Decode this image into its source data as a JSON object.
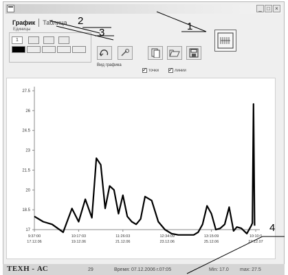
{
  "window": {
    "title": "",
    "buttons": [
      "_",
      "□",
      "×"
    ]
  },
  "tabs": [
    {
      "label": "График",
      "active": true
    },
    {
      "label": "Таблица",
      "active": false
    }
  ],
  "toolbar": {
    "group_label": "Единицы",
    "unit_value": "1",
    "plot_type_label": "Вид графика",
    "checkbox_points": "точки",
    "checkbox_lines": "линии",
    "icons": [
      "undo-icon",
      "zoom-icon",
      "copy-icon",
      "open-icon",
      "save-icon",
      "print-icon"
    ]
  },
  "callouts": [
    "1",
    "2",
    "3",
    "4"
  ],
  "chart_data": {
    "type": "line",
    "yticks": [
      "27.5",
      "26",
      "24.5",
      "23",
      "21.5",
      "20",
      "18.5",
      "17"
    ],
    "xticks": [
      {
        "time": "9:37:00",
        "date": "17.12.06"
      },
      {
        "time": "10:17:03",
        "date": "19.12.06"
      },
      {
        "time": "11:26:03",
        "date": "21.12.06"
      },
      {
        "time": "12:34:09",
        "date": "23.12.06"
      },
      {
        "time": "13:15:09",
        "date": "25.12.06"
      },
      {
        "time": "10:10:0",
        "date": "27.12.07"
      }
    ],
    "ylim": [
      17,
      27.5
    ],
    "xlim": [
      0,
      10
    ],
    "x": [
      0,
      0.4,
      0.8,
      1.3,
      1.7,
      2.0,
      2.3,
      2.6,
      2.8,
      3.0,
      3.2,
      3.4,
      3.6,
      3.8,
      4.0,
      4.2,
      4.4,
      4.6,
      4.8,
      5.0,
      5.3,
      5.6,
      5.9,
      6.2,
      6.5,
      6.9,
      7.2,
      7.4,
      7.6,
      7.8,
      8.0,
      8.2,
      8.4,
      8.6,
      8.8,
      9.0,
      9.15,
      9.35,
      9.6,
      9.8,
      9.85,
      9.9,
      9.95
    ],
    "y": [
      18.0,
      17.6,
      17.4,
      16.8,
      18.6,
      17.6,
      19.3,
      17.9,
      22.4,
      21.9,
      18.6,
      20.3,
      20.0,
      18.2,
      19.6,
      18.0,
      17.6,
      17.4,
      17.8,
      19.5,
      19.2,
      17.6,
      17.0,
      16.7,
      16.6,
      16.6,
      16.6,
      16.8,
      17.4,
      18.8,
      18.2,
      17.0,
      17.1,
      17.4,
      18.7,
      16.9,
      17.2,
      17.1,
      16.7,
      17.3,
      17.5,
      26.5,
      17.3
    ]
  },
  "status": {
    "brand": "ТЕХН - АС",
    "count": "29",
    "record": "Время: 07.12.2006 г.07:05",
    "min": "Min: 17.0",
    "max": "max: 27.5"
  }
}
